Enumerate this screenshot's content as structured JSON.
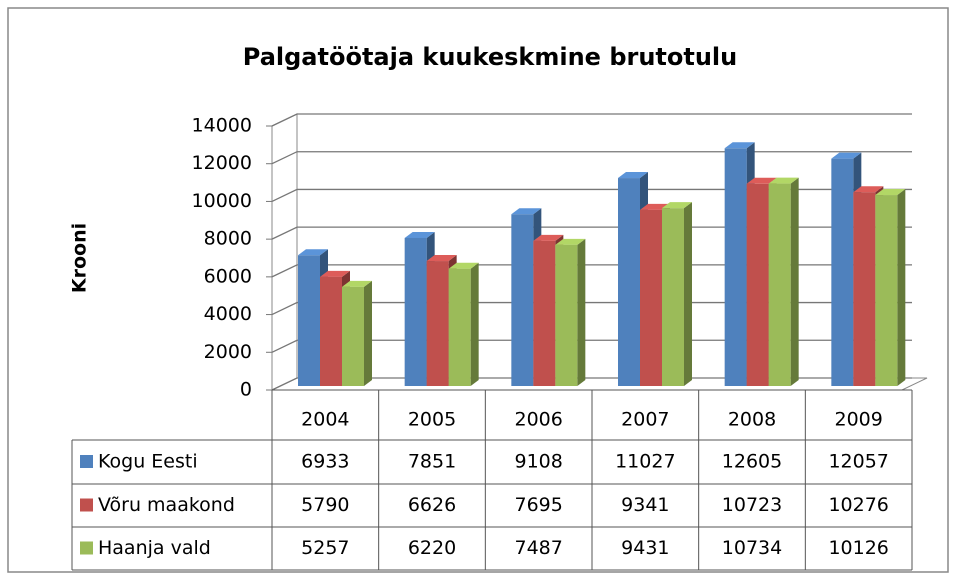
{
  "chart_data": {
    "type": "bar3d",
    "title": "Palgatöötaja kuukeskmine brutotulu",
    "y_label": "Krooni",
    "categories": [
      "2004",
      "2005",
      "2006",
      "2007",
      "2008",
      "2009"
    ],
    "series": [
      {
        "name": "Kogu Eesti",
        "color": "#4f81bd",
        "values": [
          6933,
          7851,
          9108,
          11027,
          12605,
          12057
        ]
      },
      {
        "name": "Võru maakond",
        "color": "#c0504d",
        "values": [
          5790,
          6626,
          7695,
          9341,
          10723,
          10276
        ]
      },
      {
        "name": "Haanja vald",
        "color": "#9bbb59",
        "values": [
          5257,
          6220,
          7487,
          9431,
          10734,
          10126
        ]
      }
    ],
    "ylim": [
      0,
      14000
    ],
    "yticks": [
      0,
      2000,
      4000,
      6000,
      8000,
      10000,
      12000,
      14000
    ],
    "grid": true,
    "data_table": true
  }
}
